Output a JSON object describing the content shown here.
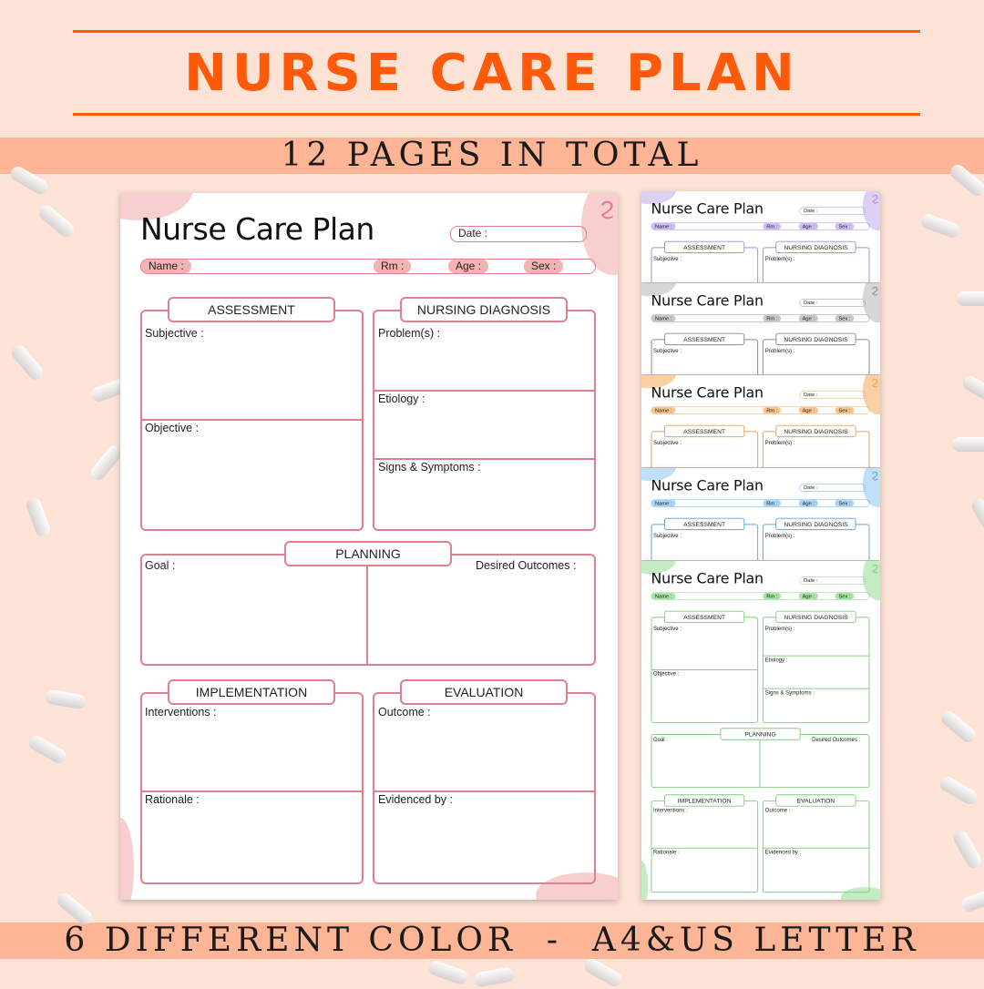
{
  "header": {
    "title": "NURSE CARE PLAN",
    "subtitle": "12 PAGES IN TOTAL",
    "footer": "6 DIFFERENT COLOR  -  A4&US LETTER"
  },
  "colors": {
    "accent": "#ff5a0a",
    "band": "#fdb595",
    "background": "#fde3d6"
  },
  "template": {
    "title": "Nurse Care Plan",
    "date": "Date :",
    "name": "Name :",
    "rm": "Rm :",
    "age": "Age :",
    "sex": "Sex :",
    "assessment": "ASSESSMENT",
    "subjective": "Subjective :",
    "objective": "Objective :",
    "diagnosis": "NURSING DIAGNOSIS",
    "problems": "Problem(s) :",
    "etiology": "Etiology :",
    "signs": "Signs & Symptoms :",
    "planning": "PLANNING",
    "goal": "Goal :",
    "outcomes": "Desired Outcomes  :",
    "implementation": "IMPLEMENTATION",
    "interventions": "Interventions :",
    "rationale": "Rationale :",
    "evaluation": "EVALUATION",
    "outcome": "Outcome :",
    "evidenced": "Evidenced by :"
  },
  "pages": [
    {
      "name": "pink",
      "border": "#e07f8f",
      "fill": "#f2b3b3",
      "blob": "#f8cfcf"
    },
    {
      "name": "purple",
      "border": "#a48be0",
      "fill": "#cdbdf2",
      "blob": "#dcd0f5"
    },
    {
      "name": "gray",
      "border": "#8a8a8a",
      "fill": "#c8c8c8",
      "blob": "#d6d6d6"
    },
    {
      "name": "orange",
      "border": "#eea050",
      "fill": "#f8c58f",
      "blob": "#f9d0a3"
    },
    {
      "name": "blue",
      "border": "#5aa6e6",
      "fill": "#a9d4f6",
      "blob": "#bfe0f8"
    },
    {
      "name": "green",
      "border": "#7fcf7f",
      "fill": "#a6e4a6",
      "blob": "#c4ecc4"
    }
  ]
}
